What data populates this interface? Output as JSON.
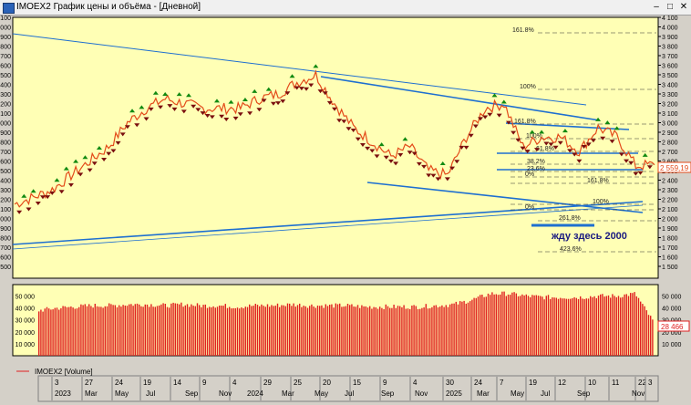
{
  "window": {
    "title": "IMOEX2 График цены и объёма - [Дневной]",
    "min": "–",
    "max": "□",
    "close": "✕"
  },
  "colors": {
    "plot_bg": "#ffffb5",
    "up_marker": "#118a11",
    "down_marker": "#7a0f0f",
    "trend": "#1e6fd0",
    "price": "#e34a1a",
    "volume": "#e02020"
  },
  "price_panel": {
    "ticks": [
      "4 100",
      "4 000",
      "3 900",
      "3 800",
      "3 700",
      "3 600",
      "3 500",
      "3 400",
      "3 300",
      "3 200",
      "3 100",
      "3 000",
      "2 900",
      "2 800",
      "2 700",
      "2 600",
      "2 500",
      "2 400",
      "2 300",
      "2 200",
      "2 100",
      "2 000",
      "1 900",
      "1 800",
      "1 700",
      "1 600",
      "1 500"
    ],
    "last_price": "2 559,19",
    "annotation": "жду здесь 2000",
    "fib_labels": [
      "161.8%",
      "100%",
      "161.8%",
      "100%",
      "61.8%",
      "38.2%",
      "23.6%",
      "0%",
      "161.8%",
      "100%",
      "0%",
      "261.8%",
      "423.6%"
    ]
  },
  "volume_panel": {
    "ticks": [
      "50 000",
      "40 000",
      "30 000",
      "20 000",
      "10 000"
    ],
    "last_volume": "28 466",
    "legend": "IMOEX2 [Volume]"
  },
  "time_axis": {
    "days": [
      "3",
      "27",
      "24",
      "19",
      "14",
      "9",
      "4",
      "29",
      "25",
      "20",
      "15",
      "9",
      "4",
      "30",
      "24",
      "7",
      "19",
      "12",
      "10",
      "11",
      "22",
      "3"
    ],
    "months": [
      "2023",
      "Mar",
      "May",
      "Jul",
      "Sep",
      "Nov",
      "2024",
      "Mar",
      "May",
      "Jul",
      "Sep",
      "Nov",
      "2025",
      "Mar",
      "May",
      "Jul",
      "Sep",
      "Nov"
    ]
  },
  "chart_data": {
    "type": "line",
    "title": "IMOEX2 График цены и объёма - [Дневной]",
    "x": [
      "2023-01",
      "2023-02",
      "2023-03",
      "2023-04",
      "2023-05",
      "2023-06",
      "2023-07",
      "2023-08",
      "2023-09",
      "2023-10",
      "2023-11",
      "2023-12",
      "2024-01",
      "2024-02",
      "2024-03",
      "2024-04",
      "2024-05",
      "2024-06",
      "2024-07",
      "2024-08",
      "2024-09",
      "2024-10",
      "2024-11",
      "2024-12",
      "2025-01",
      "2025-02",
      "2025-03",
      "2025-04",
      "2025-05",
      "2025-06",
      "2025-07",
      "2025-08",
      "2025-09",
      "2025-10",
      "2025-11"
    ],
    "series": [
      {
        "values": [
          2150,
          2220,
          2300,
          2450,
          2600,
          2750,
          3000,
          3150,
          3250,
          3200,
          3150,
          3150,
          3150,
          3250,
          3300,
          3420,
          3500,
          3200,
          2950,
          2800,
          2650,
          2750,
          2500,
          2450,
          2850,
          3150,
          3200,
          2750,
          2850,
          2850,
          2700,
          2950,
          2850,
          2550,
          2560
        ]
      },
      {
        "values": [
          38000,
          40000,
          41000,
          42000,
          42000,
          43000,
          43000,
          42000,
          43000,
          42000,
          42000,
          41000,
          42000,
          42000,
          43000,
          42000,
          42000,
          42000,
          41000,
          41000,
          41000,
          41000,
          42000,
          43000,
          47000,
          52000,
          52000,
          50000,
          49000,
          49000,
          49000,
          50000,
          50000,
          52000,
          28466
        ]
      }
    ],
    "ylim_price": [
      1500,
      4100
    ],
    "ylim_volume": [
      0,
      60000
    ]
  }
}
